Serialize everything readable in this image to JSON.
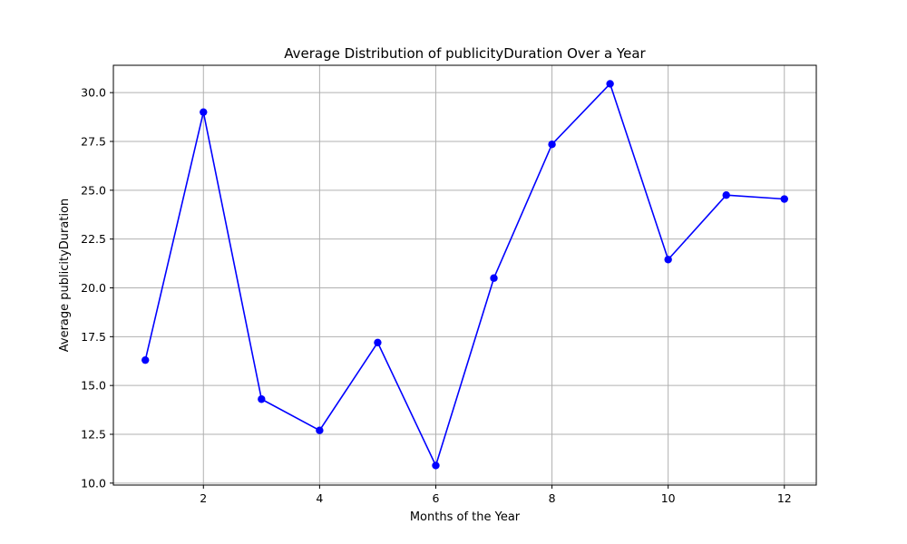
{
  "chart_data": {
    "type": "line",
    "title": "Average Distribution of publicityDuration Over a Year",
    "xlabel": "Months of the Year",
    "ylabel": "Average publicityDuration",
    "x": [
      1,
      2,
      3,
      4,
      5,
      6,
      7,
      8,
      9,
      10,
      11,
      12
    ],
    "series": [
      {
        "values": [
          16.3,
          29.0,
          14.3,
          12.7,
          17.2,
          10.9,
          20.5,
          27.35,
          30.45,
          21.45,
          24.75,
          24.55
        ],
        "color": "#0000ff",
        "marker": "circle"
      }
    ],
    "xlim": [
      0.45,
      12.55
    ],
    "ylim": [
      9.9,
      31.4
    ],
    "x_ticks": [
      2,
      4,
      6,
      8,
      10,
      12
    ],
    "x_tick_labels": [
      "2",
      "4",
      "6",
      "8",
      "10",
      "12"
    ],
    "y_ticks": [
      10.0,
      12.5,
      15.0,
      17.5,
      20.0,
      22.5,
      25.0,
      27.5,
      30.0
    ],
    "y_tick_labels": [
      "10.0",
      "12.5",
      "15.0",
      "17.5",
      "20.0",
      "22.5",
      "25.0",
      "27.5",
      "30.0"
    ],
    "grid": true,
    "grid_color": "#b0b0b0",
    "legend": false
  }
}
